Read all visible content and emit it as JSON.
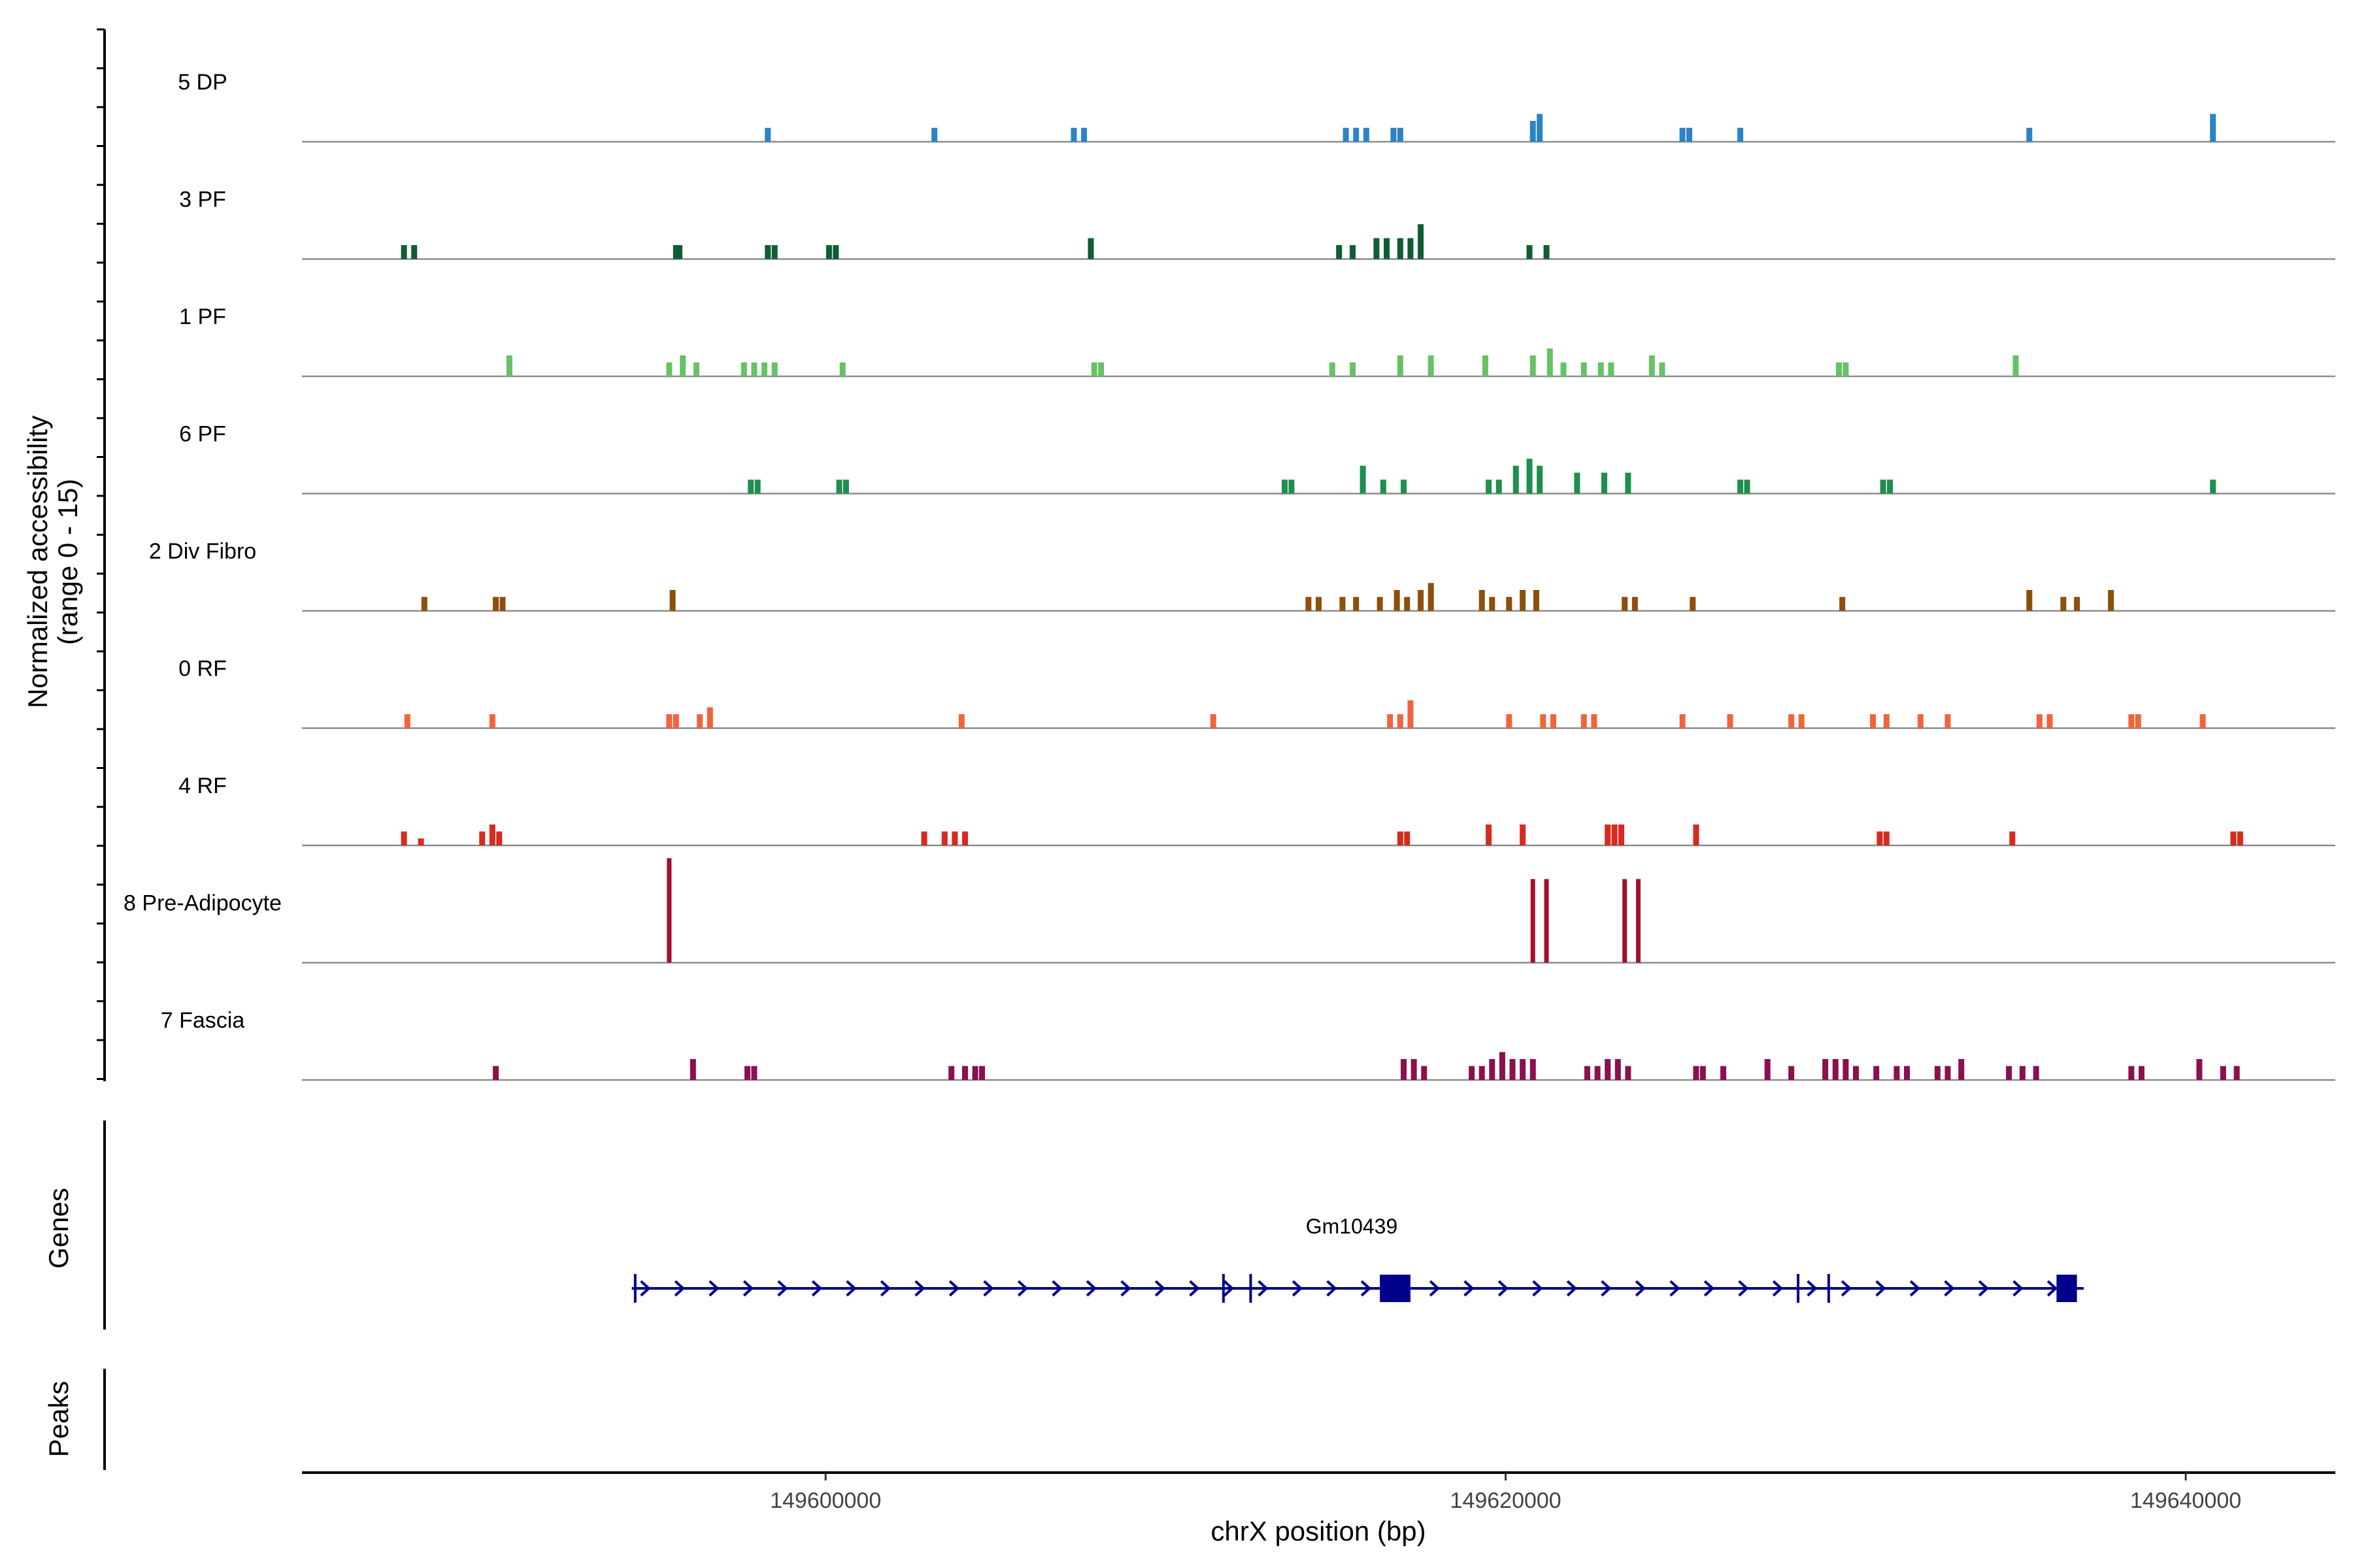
{
  "chart_data": {
    "type": "coverage",
    "title": "",
    "ylabel_line1": "Normalized accessibility",
    "ylabel_line2": "(range 0 - 15)",
    "ylim": [
      0,
      15
    ],
    "xlabel": "chrX position (bp)",
    "xlim": [
      149584600,
      149644400
    ],
    "x_ticks": [
      149600000,
      149620000,
      149640000
    ],
    "x_tick_labels": [
      "149600000",
      "149620000",
      "149640000"
    ],
    "tracks": [
      {
        "name": "5 DP",
        "color": "#2b83c6",
        "peaks": [
          [
            149598300,
            2
          ],
          [
            149603200,
            2
          ],
          [
            149607300,
            2
          ],
          [
            149607600,
            2
          ],
          [
            149615300,
            2
          ],
          [
            149615600,
            2
          ],
          [
            149615900,
            2
          ],
          [
            149616700,
            2
          ],
          [
            149616900,
            2
          ],
          [
            149620800,
            3
          ],
          [
            149621000,
            4
          ],
          [
            149625200,
            2
          ],
          [
            149625400,
            2
          ],
          [
            149626900,
            2
          ],
          [
            149635400,
            2
          ],
          [
            149640800,
            4
          ]
        ]
      },
      {
        "name": "3 PF",
        "color": "#0f5c35",
        "peaks": [
          [
            149587600,
            2
          ],
          [
            149587900,
            2
          ],
          [
            149595600,
            2
          ],
          [
            149595700,
            2
          ],
          [
            149598300,
            2
          ],
          [
            149598500,
            2
          ],
          [
            149600100,
            2
          ],
          [
            149600300,
            2
          ],
          [
            149607800,
            3
          ],
          [
            149615100,
            2
          ],
          [
            149615500,
            2
          ],
          [
            149616200,
            3
          ],
          [
            149616500,
            3
          ],
          [
            149616900,
            3
          ],
          [
            149617200,
            3
          ],
          [
            149617500,
            5
          ],
          [
            149620700,
            2
          ],
          [
            149621200,
            2
          ]
        ]
      },
      {
        "name": "1 PF",
        "color": "#66c265",
        "peaks": [
          [
            149590700,
            3
          ],
          [
            149595400,
            2
          ],
          [
            149595800,
            3
          ],
          [
            149596200,
            2
          ],
          [
            149597600,
            2
          ],
          [
            149597900,
            2
          ],
          [
            149598200,
            2
          ],
          [
            149598500,
            2
          ],
          [
            149600500,
            2
          ],
          [
            149607900,
            2
          ],
          [
            149608100,
            2
          ],
          [
            149614900,
            2
          ],
          [
            149615500,
            2
          ],
          [
            149616900,
            3
          ],
          [
            149617800,
            3
          ],
          [
            149619400,
            3
          ],
          [
            149620800,
            3
          ],
          [
            149621300,
            4
          ],
          [
            149621700,
            2
          ],
          [
            149622300,
            2
          ],
          [
            149622800,
            2
          ],
          [
            149623100,
            2
          ],
          [
            149624300,
            3
          ],
          [
            149624600,
            2
          ],
          [
            149629800,
            2
          ],
          [
            149630000,
            2
          ],
          [
            149635000,
            3
          ]
        ]
      },
      {
        "name": "6 PF",
        "color": "#1e8f4e",
        "peaks": [
          [
            149597800,
            2
          ],
          [
            149598000,
            2
          ],
          [
            149600400,
            2
          ],
          [
            149600600,
            2
          ],
          [
            149613500,
            2
          ],
          [
            149613700,
            2
          ],
          [
            149615800,
            4
          ],
          [
            149616400,
            2
          ],
          [
            149617000,
            2
          ],
          [
            149619500,
            2
          ],
          [
            149619800,
            2
          ],
          [
            149620300,
            4
          ],
          [
            149620700,
            5
          ],
          [
            149621000,
            4
          ],
          [
            149622100,
            3
          ],
          [
            149622900,
            3
          ],
          [
            149623600,
            3
          ],
          [
            149626900,
            2
          ],
          [
            149627100,
            2
          ],
          [
            149631100,
            2
          ],
          [
            149631300,
            2
          ],
          [
            149640800,
            2
          ]
        ]
      },
      {
        "name": "2 Div Fibro",
        "color": "#8c4f0c",
        "peaks": [
          [
            149588200,
            2
          ],
          [
            149590300,
            2
          ],
          [
            149590500,
            2
          ],
          [
            149595500,
            3
          ],
          [
            149614200,
            2
          ],
          [
            149614500,
            2
          ],
          [
            149615200,
            2
          ],
          [
            149615600,
            2
          ],
          [
            149616300,
            2
          ],
          [
            149616800,
            3
          ],
          [
            149617100,
            2
          ],
          [
            149617500,
            3
          ],
          [
            149617800,
            4
          ],
          [
            149619300,
            3
          ],
          [
            149619600,
            2
          ],
          [
            149620100,
            2
          ],
          [
            149620500,
            3
          ],
          [
            149620900,
            3
          ],
          [
            149623500,
            2
          ],
          [
            149623800,
            2
          ],
          [
            149625500,
            2
          ],
          [
            149629900,
            2
          ],
          [
            149635400,
            3
          ],
          [
            149636400,
            2
          ],
          [
            149636800,
            2
          ],
          [
            149637800,
            3
          ]
        ]
      },
      {
        "name": "0 RF",
        "color": "#f0643c",
        "peaks": [
          [
            149587700,
            2
          ],
          [
            149590200,
            2
          ],
          [
            149595400,
            2
          ],
          [
            149595600,
            2
          ],
          [
            149596300,
            2
          ],
          [
            149596600,
            3
          ],
          [
            149604000,
            2
          ],
          [
            149611400,
            2
          ],
          [
            149616600,
            2
          ],
          [
            149616900,
            2
          ],
          [
            149617200,
            4
          ],
          [
            149620100,
            2
          ],
          [
            149621100,
            2
          ],
          [
            149621400,
            2
          ],
          [
            149622300,
            2
          ],
          [
            149622600,
            2
          ],
          [
            149625200,
            2
          ],
          [
            149626600,
            2
          ],
          [
            149628400,
            2
          ],
          [
            149628700,
            2
          ],
          [
            149630800,
            2
          ],
          [
            149631200,
            2
          ],
          [
            149632200,
            2
          ],
          [
            149633000,
            2
          ],
          [
            149635700,
            2
          ],
          [
            149636000,
            2
          ],
          [
            149638400,
            2
          ],
          [
            149638600,
            2
          ],
          [
            149640500,
            2
          ]
        ]
      },
      {
        "name": "4 RF",
        "color": "#d62b1e",
        "peaks": [
          [
            149587600,
            2
          ],
          [
            149588100,
            1
          ],
          [
            149589900,
            2
          ],
          [
            149590200,
            3
          ],
          [
            149590400,
            2
          ],
          [
            149602900,
            2
          ],
          [
            149603500,
            2
          ],
          [
            149603800,
            2
          ],
          [
            149604100,
            2
          ],
          [
            149616900,
            2
          ],
          [
            149617100,
            2
          ],
          [
            149619500,
            3
          ],
          [
            149620500,
            3
          ],
          [
            149623000,
            3
          ],
          [
            149623200,
            3
          ],
          [
            149623400,
            3
          ],
          [
            149625600,
            3
          ],
          [
            149631000,
            2
          ],
          [
            149631200,
            2
          ],
          [
            149634900,
            2
          ],
          [
            149641400,
            2
          ],
          [
            149641600,
            2
          ]
        ]
      },
      {
        "name": "8 Pre-Adipocyte",
        "color": "#a50e2d",
        "peaks": [
          [
            149595400,
            15
          ],
          [
            149620800,
            12
          ],
          [
            149621200,
            12
          ],
          [
            149623500,
            12
          ],
          [
            149623900,
            12
          ]
        ]
      },
      {
        "name": "7 Fascia",
        "color": "#8a1050",
        "peaks": [
          [
            149590300,
            2
          ],
          [
            149596100,
            3
          ],
          [
            149597700,
            2
          ],
          [
            149597900,
            2
          ],
          [
            149603700,
            2
          ],
          [
            149604100,
            2
          ],
          [
            149604400,
            2
          ],
          [
            149604600,
            2
          ],
          [
            149617000,
            3
          ],
          [
            149617300,
            3
          ],
          [
            149617600,
            2
          ],
          [
            149619000,
            2
          ],
          [
            149619300,
            2
          ],
          [
            149619600,
            3
          ],
          [
            149619900,
            4
          ],
          [
            149620200,
            3
          ],
          [
            149620500,
            3
          ],
          [
            149620800,
            3
          ],
          [
            149622400,
            2
          ],
          [
            149622700,
            2
          ],
          [
            149623000,
            3
          ],
          [
            149623300,
            3
          ],
          [
            149623600,
            2
          ],
          [
            149625600,
            2
          ],
          [
            149625800,
            2
          ],
          [
            149626400,
            2
          ],
          [
            149627700,
            3
          ],
          [
            149628400,
            2
          ],
          [
            149629400,
            3
          ],
          [
            149629700,
            3
          ],
          [
            149630000,
            3
          ],
          [
            149630300,
            2
          ],
          [
            149630900,
            2
          ],
          [
            149631500,
            2
          ],
          [
            149631800,
            2
          ],
          [
            149632700,
            2
          ],
          [
            149633000,
            2
          ],
          [
            149633400,
            3
          ],
          [
            149634800,
            2
          ],
          [
            149635200,
            2
          ],
          [
            149635600,
            2
          ],
          [
            149638400,
            2
          ],
          [
            149638700,
            2
          ],
          [
            149640400,
            3
          ],
          [
            149641100,
            2
          ],
          [
            149641500,
            2
          ]
        ]
      }
    ],
    "genes_label": "Genes",
    "peaks_label": "Peaks",
    "gene": {
      "name": "Gm10439",
      "color": "#00008b",
      "start": 149594300,
      "end": 149637000,
      "strand": "+",
      "boundaries": [
        149594400,
        149611700,
        149612500,
        149628600,
        149629500
      ],
      "exons": [
        [
          149616300,
          149617200
        ],
        [
          149636200,
          149636800
        ]
      ]
    }
  }
}
